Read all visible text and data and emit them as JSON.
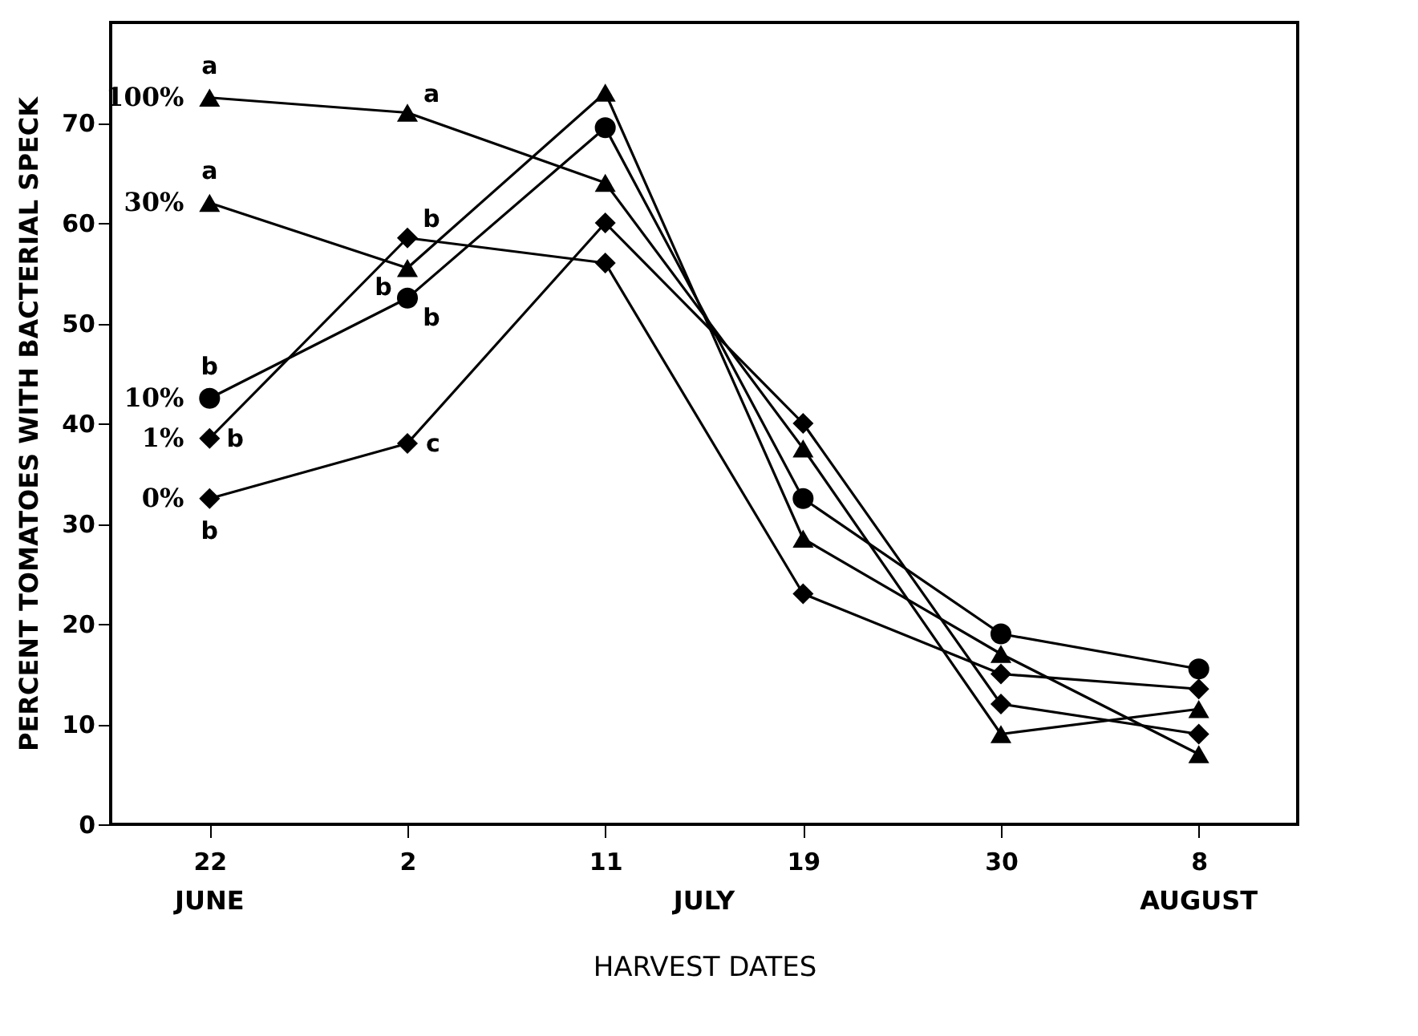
{
  "chart_data": {
    "type": "line",
    "xlabel": "HARVEST DATES",
    "ylabel": "PERCENT TOMATOES WITH BACTERIAL SPECK",
    "categories": [
      "22",
      "2",
      "11",
      "19",
      "30",
      "8"
    ],
    "series": [
      {
        "name": "100%",
        "color": "#000000",
        "marker": "triangle",
        "values": [
          72.5,
          71,
          64,
          37.5,
          9,
          11.5
        ]
      },
      {
        "name": "30%",
        "color": "#000000",
        "marker": "triangle",
        "values": [
          62,
          55.5,
          73,
          28.5,
          17,
          7
        ]
      },
      {
        "name": "10%",
        "color": "#000000",
        "marker": "circle",
        "values": [
          42.5,
          52.5,
          69.5,
          32.5,
          19,
          15.5
        ]
      },
      {
        "name": "1%",
        "color": "#000000",
        "marker": "diamond",
        "values": [
          38.5,
          58.5,
          56,
          23,
          15,
          13.5
        ]
      },
      {
        "name": "0%",
        "color": "#000000",
        "marker": "diamond",
        "values": [
          32.5,
          38,
          60,
          40,
          12,
          9
        ]
      }
    ],
    "ylim": [
      0,
      80
    ],
    "yticks": [
      0,
      10,
      20,
      30,
      40,
      50,
      60,
      70
    ],
    "annotations": [
      {
        "text": "a",
        "x": "22",
        "y": 72.5
      },
      {
        "text": "a",
        "x": "2",
        "y": 71
      },
      {
        "text": "a",
        "x": "22",
        "y": 62
      },
      {
        "text": "b",
        "x": "2",
        "y": 55.5
      },
      {
        "text": "b",
        "x": "22",
        "y": 42.5
      },
      {
        "text": "b",
        "x": "2",
        "y": 52.5
      },
      {
        "text": "b",
        "x": "22",
        "y": 38.5
      },
      {
        "text": "b",
        "x": "2",
        "y": 58.5
      },
      {
        "text": "b",
        "x": "22",
        "y": 32.5
      },
      {
        "text": "c",
        "x": "2",
        "y": 38
      },
      "JUNE",
      "JULY",
      "AUGUST"
    ],
    "grid": false,
    "line_style": "solid"
  }
}
